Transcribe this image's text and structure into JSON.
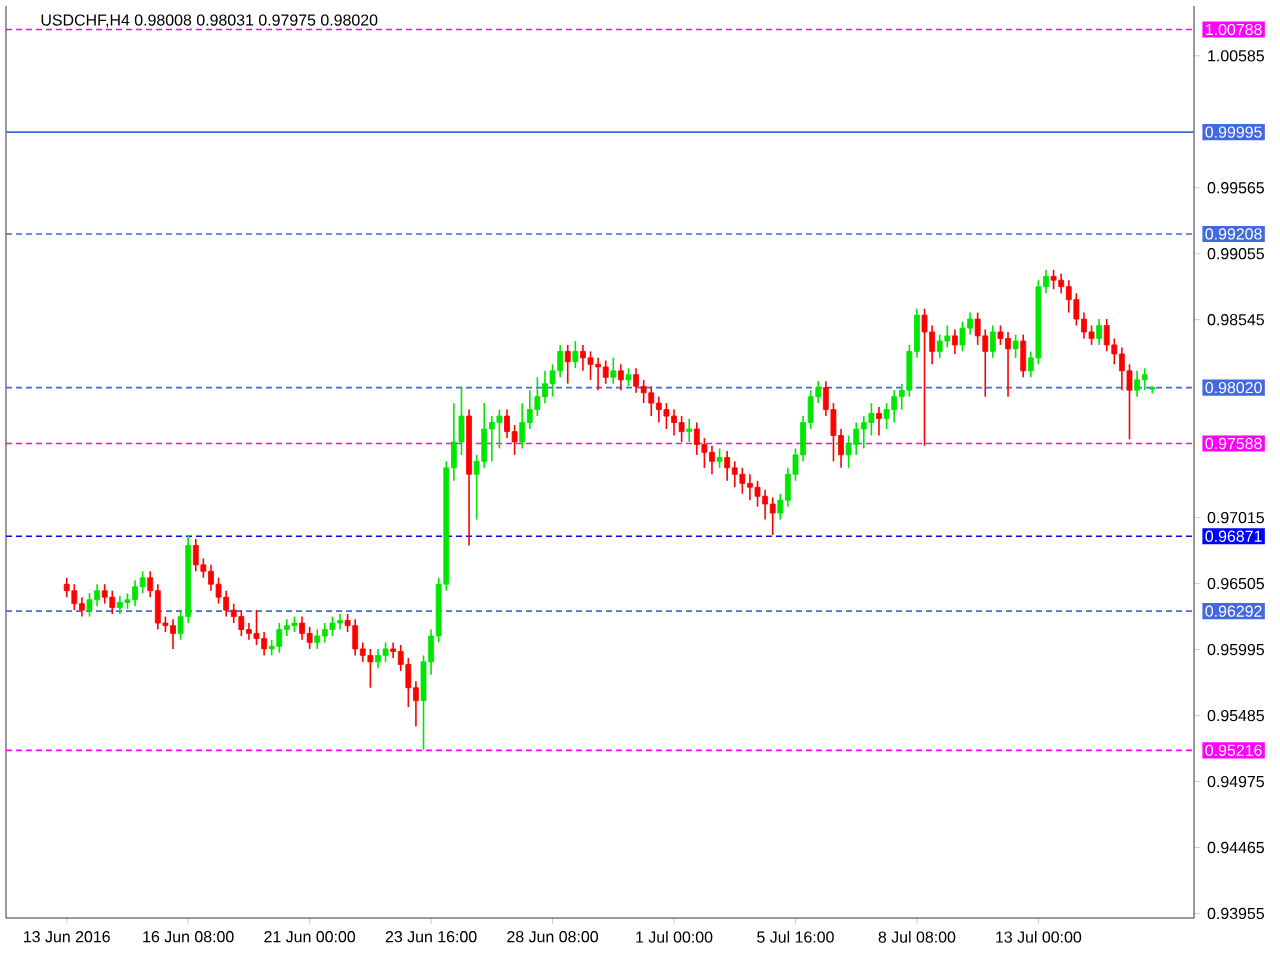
{
  "chart_data": {
    "type": "candlestick",
    "title": "USDCHF,H4  0.98008 0.98031 0.97975 0.98020",
    "categories": [
      "13 Jun 2016",
      null,
      null,
      null,
      null,
      null,
      null,
      null,
      null,
      null,
      null,
      null,
      null,
      null,
      null,
      null,
      "16 Jun 08:00",
      null,
      null,
      null,
      null,
      null,
      null,
      null,
      null,
      null,
      null,
      null,
      null,
      null,
      null,
      null,
      "21 Jun 00:00",
      null,
      null,
      null,
      null,
      null,
      null,
      null,
      null,
      null,
      null,
      null,
      null,
      null,
      null,
      null,
      "23 Jun 16:00",
      null,
      null,
      null,
      null,
      null,
      null,
      null,
      null,
      null,
      null,
      null,
      null,
      null,
      null,
      null,
      "28 Jun 08:00",
      null,
      null,
      null,
      null,
      null,
      null,
      null,
      null,
      null,
      null,
      null,
      null,
      null,
      null,
      null,
      "1 Jul 00:00",
      null,
      null,
      null,
      null,
      null,
      null,
      null,
      null,
      null,
      null,
      null,
      null,
      null,
      null,
      null,
      "5 Jul 16:00",
      null,
      null,
      null,
      null,
      null,
      null,
      null,
      null,
      null,
      null,
      null,
      null,
      null,
      null,
      null,
      "8 Jul 08:00",
      null,
      null,
      null,
      null,
      null,
      null,
      null,
      null,
      null,
      null,
      null,
      null,
      null,
      null,
      null,
      "13 Jul 00:00",
      null,
      null,
      null,
      null,
      null,
      null,
      null,
      null,
      null,
      null,
      null,
      null,
      null,
      null,
      null
    ],
    "ohlc": [
      [
        0.965,
        0.9655,
        0.964,
        0.9645
      ],
      [
        0.9645,
        0.965,
        0.963,
        0.9635
      ],
      [
        0.9635,
        0.964,
        0.9625,
        0.963
      ],
      [
        0.963,
        0.9643,
        0.9625,
        0.9638
      ],
      [
        0.9638,
        0.965,
        0.9633,
        0.9645
      ],
      [
        0.9645,
        0.965,
        0.9635,
        0.964
      ],
      [
        0.964,
        0.9645,
        0.9627,
        0.9632
      ],
      [
        0.9632,
        0.9641,
        0.9627,
        0.9636
      ],
      [
        0.9636,
        0.9643,
        0.9631,
        0.9638
      ],
      [
        0.9638,
        0.9653,
        0.9633,
        0.9648
      ],
      [
        0.9648,
        0.966,
        0.9643,
        0.9655
      ],
      [
        0.9655,
        0.966,
        0.964,
        0.9645
      ],
      [
        0.9645,
        0.965,
        0.9615,
        0.962
      ],
      [
        0.962,
        0.9625,
        0.9613,
        0.9618
      ],
      [
        0.9618,
        0.9623,
        0.96,
        0.9612
      ],
      [
        0.9612,
        0.963,
        0.9607,
        0.9625
      ],
      [
        0.9625,
        0.9688,
        0.962,
        0.968
      ],
      [
        0.968,
        0.9685,
        0.966,
        0.9665
      ],
      [
        0.9665,
        0.967,
        0.9655,
        0.966
      ],
      [
        0.966,
        0.9665,
        0.9645,
        0.965
      ],
      [
        0.965,
        0.9655,
        0.9635,
        0.964
      ],
      [
        0.964,
        0.9645,
        0.9625,
        0.963
      ],
      [
        0.963,
        0.9635,
        0.962,
        0.9625
      ],
      [
        0.9625,
        0.963,
        0.961,
        0.9615
      ],
      [
        0.9615,
        0.962,
        0.9607,
        0.9612
      ],
      [
        0.9612,
        0.963,
        0.9603,
        0.9608
      ],
      [
        0.9608,
        0.9613,
        0.9595,
        0.96
      ],
      [
        0.96,
        0.9607,
        0.9595,
        0.9602
      ],
      [
        0.9602,
        0.962,
        0.9597,
        0.9615
      ],
      [
        0.9615,
        0.9623,
        0.961,
        0.9618
      ],
      [
        0.9618,
        0.9625,
        0.9613,
        0.962
      ],
      [
        0.962,
        0.9625,
        0.9607,
        0.9612
      ],
      [
        0.9612,
        0.9617,
        0.96,
        0.9605
      ],
      [
        0.9605,
        0.9615,
        0.96,
        0.961
      ],
      [
        0.961,
        0.962,
        0.9605,
        0.9615
      ],
      [
        0.9615,
        0.9625,
        0.961,
        0.962
      ],
      [
        0.962,
        0.9627,
        0.9615,
        0.9622
      ],
      [
        0.9622,
        0.9627,
        0.9613,
        0.9618
      ],
      [
        0.9618,
        0.9623,
        0.9595,
        0.96
      ],
      [
        0.96,
        0.9605,
        0.959,
        0.9595
      ],
      [
        0.9595,
        0.96,
        0.957,
        0.959
      ],
      [
        0.959,
        0.96,
        0.9585,
        0.9595
      ],
      [
        0.9595,
        0.9605,
        0.959,
        0.96
      ],
      [
        0.96,
        0.9605,
        0.9593,
        0.9598
      ],
      [
        0.9598,
        0.9603,
        0.9583,
        0.9588
      ],
      [
        0.9588,
        0.9593,
        0.9555,
        0.957
      ],
      [
        0.957,
        0.9575,
        0.954,
        0.956
      ],
      [
        0.956,
        0.9595,
        0.9522,
        0.959
      ],
      [
        0.959,
        0.9615,
        0.958,
        0.961
      ],
      [
        0.961,
        0.9655,
        0.9605,
        0.965
      ],
      [
        0.965,
        0.9745,
        0.9645,
        0.974
      ],
      [
        0.974,
        0.979,
        0.973,
        0.976
      ],
      [
        0.976,
        0.9803,
        0.975,
        0.978
      ],
      [
        0.978,
        0.9785,
        0.968,
        0.9735
      ],
      [
        0.9735,
        0.975,
        0.97,
        0.9745
      ],
      [
        0.9745,
        0.979,
        0.974,
        0.977
      ],
      [
        0.977,
        0.978,
        0.9745,
        0.9775
      ],
      [
        0.9775,
        0.9785,
        0.9755,
        0.978
      ],
      [
        0.978,
        0.9785,
        0.9763,
        0.9768
      ],
      [
        0.9768,
        0.9773,
        0.975,
        0.976
      ],
      [
        0.976,
        0.979,
        0.9755,
        0.9775
      ],
      [
        0.9775,
        0.98,
        0.977,
        0.9785
      ],
      [
        0.9785,
        0.981,
        0.978,
        0.9795
      ],
      [
        0.9795,
        0.9815,
        0.979,
        0.9805
      ],
      [
        0.9805,
        0.982,
        0.9795,
        0.9815
      ],
      [
        0.9815,
        0.9835,
        0.981,
        0.983
      ],
      [
        0.983,
        0.9835,
        0.9805,
        0.9822
      ],
      [
        0.9822,
        0.9838,
        0.9817,
        0.983
      ],
      [
        0.983,
        0.9835,
        0.9815,
        0.9825
      ],
      [
        0.9825,
        0.983,
        0.9808,
        0.982
      ],
      [
        0.982,
        0.9825,
        0.98,
        0.9818
      ],
      [
        0.9818,
        0.9823,
        0.9805,
        0.981
      ],
      [
        0.981,
        0.9825,
        0.9805,
        0.9815
      ],
      [
        0.9815,
        0.982,
        0.98,
        0.9808
      ],
      [
        0.9808,
        0.9817,
        0.9803,
        0.9812
      ],
      [
        0.9812,
        0.9817,
        0.9798,
        0.9803
      ],
      [
        0.9803,
        0.9808,
        0.979,
        0.9798
      ],
      [
        0.9798,
        0.9803,
        0.978,
        0.979
      ],
      [
        0.979,
        0.9795,
        0.9775,
        0.9785
      ],
      [
        0.9785,
        0.979,
        0.977,
        0.978
      ],
      [
        0.978,
        0.9785,
        0.9765,
        0.9775
      ],
      [
        0.9775,
        0.978,
        0.976,
        0.9768
      ],
      [
        0.9768,
        0.9778,
        0.976,
        0.977
      ],
      [
        0.977,
        0.9775,
        0.975,
        0.9758
      ],
      [
        0.9758,
        0.9763,
        0.974,
        0.9752
      ],
      [
        0.9752,
        0.9757,
        0.9735,
        0.9745
      ],
      [
        0.9745,
        0.9755,
        0.974,
        0.9748
      ],
      [
        0.9748,
        0.9753,
        0.973,
        0.974
      ],
      [
        0.974,
        0.9745,
        0.9725,
        0.9735
      ],
      [
        0.9735,
        0.974,
        0.972,
        0.9728
      ],
      [
        0.9728,
        0.9735,
        0.9715,
        0.9725
      ],
      [
        0.9725,
        0.973,
        0.971,
        0.9718
      ],
      [
        0.9718,
        0.9723,
        0.97,
        0.9712
      ],
      [
        0.9712,
        0.9717,
        0.9688,
        0.9705
      ],
      [
        0.9705,
        0.972,
        0.97,
        0.9715
      ],
      [
        0.9715,
        0.974,
        0.971,
        0.9735
      ],
      [
        0.9735,
        0.9755,
        0.973,
        0.975
      ],
      [
        0.975,
        0.978,
        0.9745,
        0.9775
      ],
      [
        0.9775,
        0.98,
        0.977,
        0.9795
      ],
      [
        0.9795,
        0.9807,
        0.979,
        0.9802
      ],
      [
        0.9802,
        0.9807,
        0.978,
        0.9785
      ],
      [
        0.9785,
        0.979,
        0.9745,
        0.9765
      ],
      [
        0.9765,
        0.977,
        0.974,
        0.975
      ],
      [
        0.975,
        0.9765,
        0.974,
        0.9758
      ],
      [
        0.9758,
        0.9775,
        0.975,
        0.977
      ],
      [
        0.977,
        0.978,
        0.9755,
        0.9775
      ],
      [
        0.9775,
        0.979,
        0.9765,
        0.9782
      ],
      [
        0.9782,
        0.9787,
        0.9765,
        0.9778
      ],
      [
        0.9778,
        0.979,
        0.977,
        0.9785
      ],
      [
        0.9785,
        0.98,
        0.9775,
        0.9795
      ],
      [
        0.9795,
        0.9805,
        0.9785,
        0.98
      ],
      [
        0.98,
        0.9835,
        0.9795,
        0.983
      ],
      [
        0.983,
        0.9863,
        0.9825,
        0.9858
      ],
      [
        0.9858,
        0.9863,
        0.9757,
        0.9845
      ],
      [
        0.9845,
        0.985,
        0.982,
        0.983
      ],
      [
        0.983,
        0.9843,
        0.9825,
        0.9838
      ],
      [
        0.9838,
        0.985,
        0.9833,
        0.9842
      ],
      [
        0.9842,
        0.9847,
        0.9828,
        0.9835
      ],
      [
        0.9835,
        0.9853,
        0.983,
        0.9848
      ],
      [
        0.9848,
        0.986,
        0.9843,
        0.9855
      ],
      [
        0.9855,
        0.986,
        0.9835,
        0.9842
      ],
      [
        0.9842,
        0.9847,
        0.9795,
        0.983
      ],
      [
        0.983,
        0.985,
        0.9825,
        0.9845
      ],
      [
        0.9845,
        0.985,
        0.9835,
        0.984
      ],
      [
        0.984,
        0.9845,
        0.9795,
        0.9832
      ],
      [
        0.9832,
        0.9843,
        0.9825,
        0.9838
      ],
      [
        0.9838,
        0.9843,
        0.981,
        0.9815
      ],
      [
        0.9815,
        0.983,
        0.981,
        0.9825
      ],
      [
        0.9825,
        0.9885,
        0.982,
        0.988
      ],
      [
        0.988,
        0.9893,
        0.9875,
        0.9888
      ],
      [
        0.9888,
        0.9893,
        0.9878,
        0.9885
      ],
      [
        0.9885,
        0.989,
        0.9875,
        0.988
      ],
      [
        0.988,
        0.9885,
        0.986,
        0.987
      ],
      [
        0.987,
        0.9875,
        0.985,
        0.9855
      ],
      [
        0.9855,
        0.986,
        0.984,
        0.9845
      ],
      [
        0.9845,
        0.985,
        0.9835,
        0.984
      ],
      [
        0.984,
        0.9855,
        0.9835,
        0.985
      ],
      [
        0.985,
        0.9855,
        0.983,
        0.9835
      ],
      [
        0.9835,
        0.984,
        0.982,
        0.9828
      ],
      [
        0.9828,
        0.9833,
        0.98,
        0.9815
      ],
      [
        0.9815,
        0.982,
        0.9762,
        0.98
      ],
      [
        0.98,
        0.9815,
        0.9795,
        0.9808
      ],
      [
        0.9808,
        0.9817,
        0.98,
        0.9812
      ],
      [
        0.98008,
        0.98031,
        0.97975,
        0.9802
      ]
    ],
    "ylim": [
      0.9392,
      1.0097
    ],
    "yticks": [
      0.93955,
      0.94465,
      0.94975,
      0.95485,
      0.95995,
      0.96505,
      0.97015,
      0.98545,
      0.99055,
      0.99565,
      1.00585
    ],
    "ref_lines": [
      {
        "axis": "y",
        "value": 1.00788,
        "label": "1.00788",
        "color": "#ff00ff",
        "line_style": "dashed"
      },
      {
        "axis": "y",
        "value": 0.99995,
        "label": "0.99995",
        "color": "#4169e1",
        "line_style": "solid"
      },
      {
        "axis": "y",
        "value": 0.99208,
        "label": "0.99208",
        "color": "#4169e1",
        "line_style": "dashed"
      },
      {
        "axis": "y",
        "value": 0.9802,
        "label": "0.98020",
        "color": "#4169e1",
        "line_style": "dashed"
      },
      {
        "axis": "y",
        "value": 0.97588,
        "label": "0.97588",
        "color": "#ff00ff",
        "line_style": "dashed"
      },
      {
        "axis": "y",
        "value": 0.96871,
        "label": "0.96871",
        "color": "#0000ff",
        "line_style": "dashed"
      },
      {
        "axis": "y",
        "value": 0.96292,
        "label": "0.96292",
        "color": "#4169e1",
        "line_style": "dashed"
      },
      {
        "axis": "y",
        "value": 0.95216,
        "label": "0.95216",
        "color": "#ff00ff",
        "line_style": "dashed"
      }
    ]
  }
}
